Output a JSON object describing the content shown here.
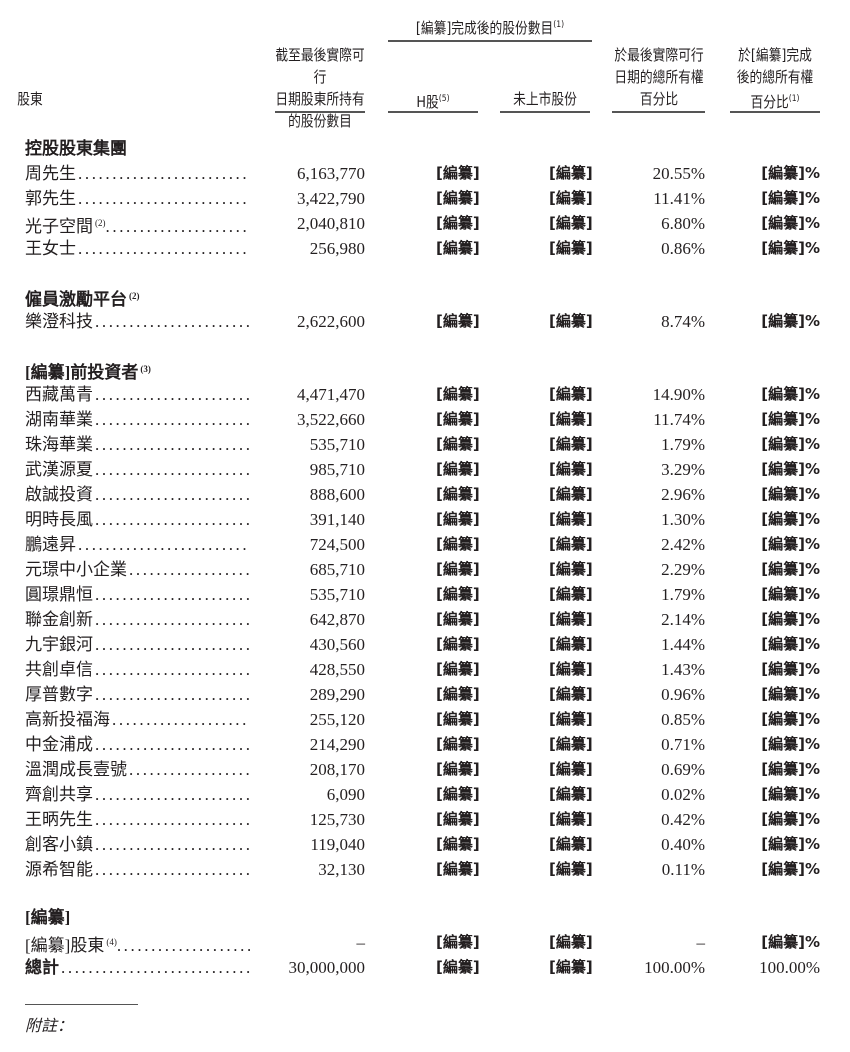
{
  "header": {
    "group_title": "[編纂]完成後的股份數目",
    "group_note": "(1)",
    "col_shareholder": "股東",
    "col_shares_line1": "截至最後實際可行",
    "col_shares_line2": "日期股東所持有",
    "col_shares_line3": "的股份數目",
    "col_h": "H股",
    "col_h_note": "(5)",
    "col_unlisted": "未上市股份",
    "col_pct_line1": "於最後實際可行",
    "col_pct_line2": "日期的總所有權",
    "col_pct_line3": "百分比",
    "col_after_line1": "於[編纂]完成",
    "col_after_line2": "後的總所有權",
    "col_after_line3": "百分比",
    "col_after_note": "(1)"
  },
  "rows": [
    {
      "type": "section",
      "name": "控股股東集團"
    },
    {
      "type": "data",
      "name": "周先生",
      "shares": "6,163,770",
      "h": "[編纂]",
      "unlisted": "[編纂]",
      "pct": "20.55%",
      "after": "[編纂]%"
    },
    {
      "type": "data",
      "name": "郭先生",
      "shares": "3,422,790",
      "h": "[編纂]",
      "unlisted": "[編纂]",
      "pct": "11.41%",
      "after": "[編纂]%"
    },
    {
      "type": "data",
      "name": "光子空間",
      "note": "(2)",
      "shares": "2,040,810",
      "h": "[編纂]",
      "unlisted": "[編纂]",
      "pct": "6.80%",
      "after": "[編纂]%"
    },
    {
      "type": "data",
      "name": "王女士",
      "shares": "256,980",
      "h": "[編纂]",
      "unlisted": "[編纂]",
      "pct": "0.86%",
      "after": "[編纂]%"
    },
    {
      "type": "section",
      "name": "僱員激勵平台",
      "note": "(2)"
    },
    {
      "type": "data",
      "name": "樂澄科技",
      "shares": "2,622,600",
      "h": "[編纂]",
      "unlisted": "[編纂]",
      "pct": "8.74%",
      "after": "[編纂]%"
    },
    {
      "type": "section",
      "name": "[編纂]前投資者",
      "note": "(3)"
    },
    {
      "type": "data",
      "name": "西藏萬青",
      "shares": "4,471,470",
      "h": "[編纂]",
      "unlisted": "[編纂]",
      "pct": "14.90%",
      "after": "[編纂]%"
    },
    {
      "type": "data",
      "name": "湖南華業",
      "shares": "3,522,660",
      "h": "[編纂]",
      "unlisted": "[編纂]",
      "pct": "11.74%",
      "after": "[編纂]%"
    },
    {
      "type": "data",
      "name": "珠海華業",
      "shares": "535,710",
      "h": "[編纂]",
      "unlisted": "[編纂]",
      "pct": "1.79%",
      "after": "[編纂]%"
    },
    {
      "type": "data",
      "name": "武漢源夏",
      "shares": "985,710",
      "h": "[編纂]",
      "unlisted": "[編纂]",
      "pct": "3.29%",
      "after": "[編纂]%"
    },
    {
      "type": "data",
      "name": "啟誠投資",
      "shares": "888,600",
      "h": "[編纂]",
      "unlisted": "[編纂]",
      "pct": "2.96%",
      "after": "[編纂]%"
    },
    {
      "type": "data",
      "name": "明時長風",
      "shares": "391,140",
      "h": "[編纂]",
      "unlisted": "[編纂]",
      "pct": "1.30%",
      "after": "[編纂]%"
    },
    {
      "type": "data",
      "name": "鵬遠昇",
      "shares": "724,500",
      "h": "[編纂]",
      "unlisted": "[編纂]",
      "pct": "2.42%",
      "after": "[編纂]%"
    },
    {
      "type": "data",
      "name": "元璟中小企業",
      "shares": "685,710",
      "h": "[編纂]",
      "unlisted": "[編纂]",
      "pct": "2.29%",
      "after": "[編纂]%"
    },
    {
      "type": "data",
      "name": "圓璟鼎恒",
      "shares": "535,710",
      "h": "[編纂]",
      "unlisted": "[編纂]",
      "pct": "1.79%",
      "after": "[編纂]%"
    },
    {
      "type": "data",
      "name": "聯金創新",
      "shares": "642,870",
      "h": "[編纂]",
      "unlisted": "[編纂]",
      "pct": "2.14%",
      "after": "[編纂]%"
    },
    {
      "type": "data",
      "name": "九宇銀河",
      "shares": "430,560",
      "h": "[編纂]",
      "unlisted": "[編纂]",
      "pct": "1.44%",
      "after": "[編纂]%"
    },
    {
      "type": "data",
      "name": "共創卓信",
      "shares": "428,550",
      "h": "[編纂]",
      "unlisted": "[編纂]",
      "pct": "1.43%",
      "after": "[編纂]%"
    },
    {
      "type": "data",
      "name": "厚普數字",
      "shares": "289,290",
      "h": "[編纂]",
      "unlisted": "[編纂]",
      "pct": "0.96%",
      "after": "[編纂]%"
    },
    {
      "type": "data",
      "name": "高新投福海",
      "shares": "255,120",
      "h": "[編纂]",
      "unlisted": "[編纂]",
      "pct": "0.85%",
      "after": "[編纂]%"
    },
    {
      "type": "data",
      "name": "中金浦成",
      "shares": "214,290",
      "h": "[編纂]",
      "unlisted": "[編纂]",
      "pct": "0.71%",
      "after": "[編纂]%"
    },
    {
      "type": "data",
      "name": "溫潤成長壹號",
      "shares": "208,170",
      "h": "[編纂]",
      "unlisted": "[編纂]",
      "pct": "0.69%",
      "after": "[編纂]%"
    },
    {
      "type": "data",
      "name": "齊創共享",
      "shares": "6,090",
      "h": "[編纂]",
      "unlisted": "[編纂]",
      "pct": "0.02%",
      "after": "[編纂]%"
    },
    {
      "type": "data",
      "name": "王昞先生",
      "shares": "125,730",
      "h": "[編纂]",
      "unlisted": "[編纂]",
      "pct": "0.42%",
      "after": "[編纂]%"
    },
    {
      "type": "data",
      "name": "創客小鎮",
      "shares": "119,040",
      "h": "[編纂]",
      "unlisted": "[編纂]",
      "pct": "0.40%",
      "after": "[編纂]%"
    },
    {
      "type": "data",
      "name": "源希智能",
      "shares": "32,130",
      "h": "[編纂]",
      "unlisted": "[編纂]",
      "pct": "0.11%",
      "after": "[編纂]%"
    },
    {
      "type": "section",
      "name": "[編纂]"
    },
    {
      "type": "data",
      "name": "[編纂]股東",
      "note": "(4)",
      "shares": "–",
      "h": "[編纂]",
      "unlisted": "[編纂]",
      "pct": "–",
      "after": "[編纂]%"
    },
    {
      "type": "data",
      "name": "總計",
      "bold": true,
      "shares": "30,000,000",
      "h": "[編纂]",
      "unlisted": "[編纂]",
      "pct": "100.00%",
      "after": "100.00%"
    }
  ],
  "footer": {
    "notes_label": "附註："
  }
}
